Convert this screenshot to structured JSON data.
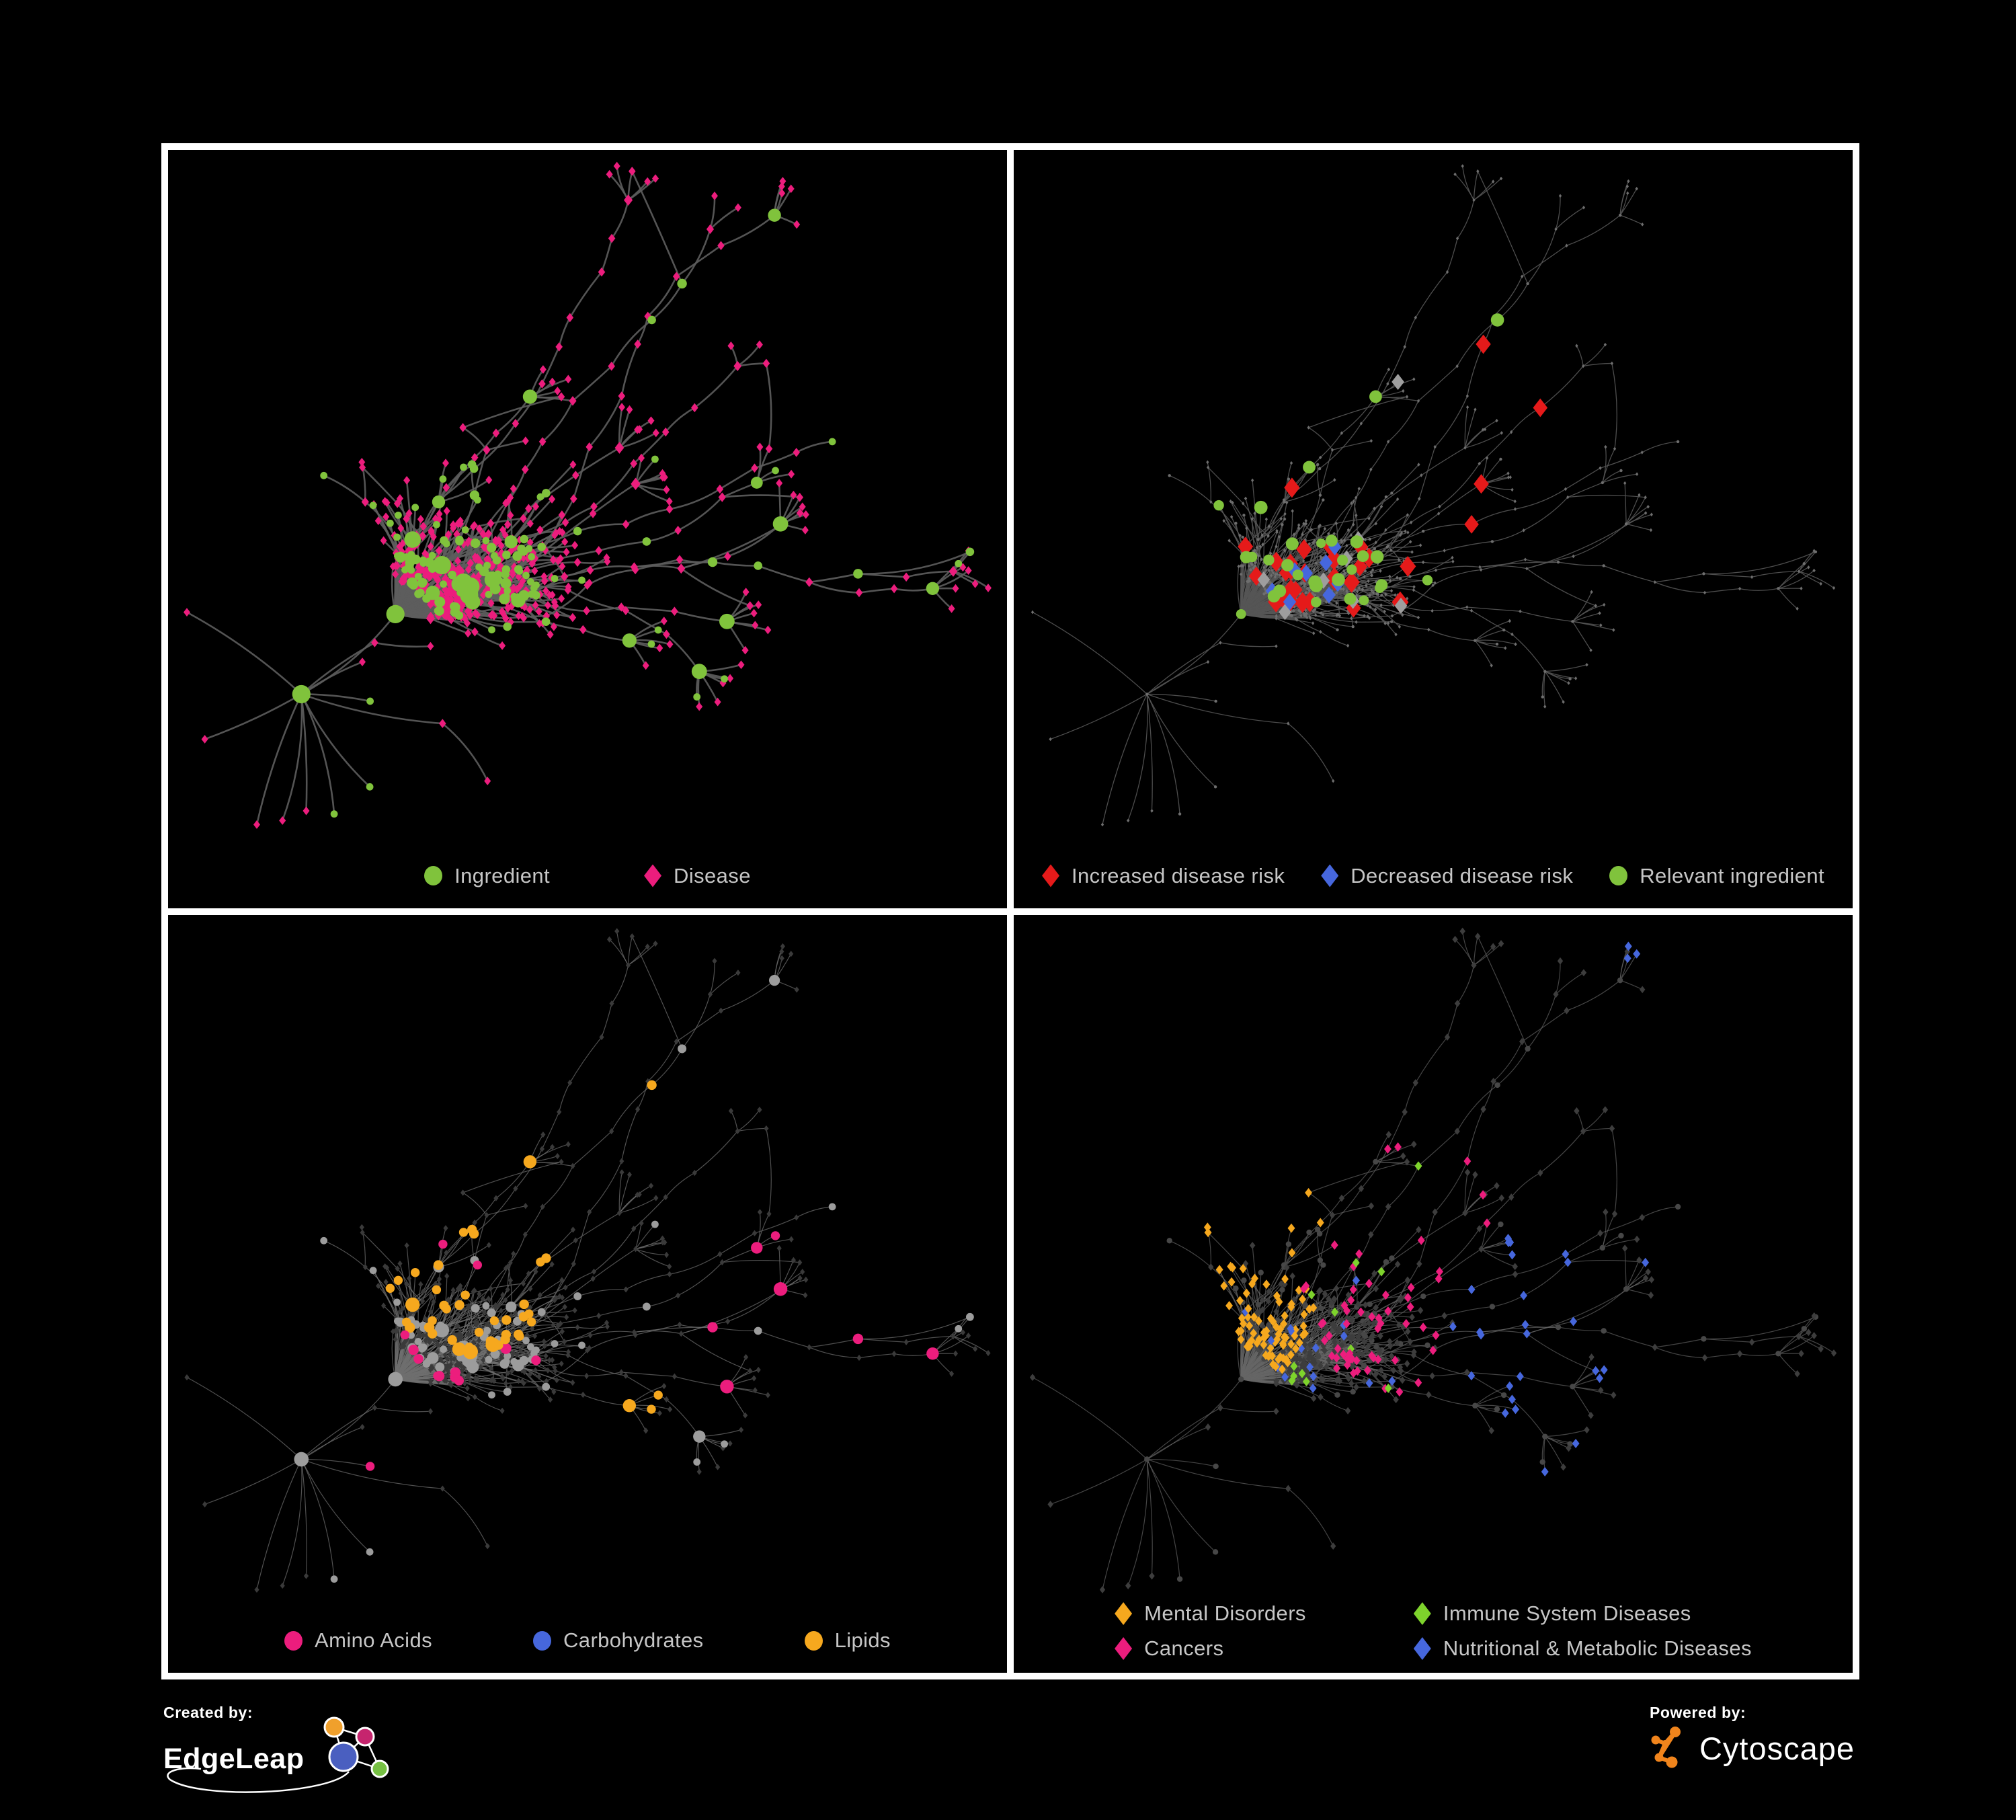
{
  "figure": {
    "background": "#000000",
    "frame_color": "#ffffff",
    "legend_text_color": "#c6c6c6"
  },
  "panels": [
    {
      "name": "ingredient-disease-network",
      "legend": [
        {
          "label": "Ingredient",
          "shape": "circle",
          "color": "#80c33c"
        },
        {
          "label": "Disease",
          "shape": "diamond",
          "color": "#ec1d7d"
        }
      ],
      "render": {
        "mode": "types",
        "edge_color": "#5d5d5d",
        "edge_width": 2.6,
        "edge_opacity": 0.9,
        "ingredient_color": "#80c33c",
        "disease_color": "#ec1d7d"
      }
    },
    {
      "name": "disease-risk-network",
      "legend": [
        {
          "label": "Increased disease risk",
          "shape": "diamond",
          "color": "#e51a1a"
        },
        {
          "label": "Decreased disease risk",
          "shape": "diamond",
          "color": "#4667dd"
        },
        {
          "label": "Relevant ingredient",
          "shape": "circle",
          "color": "#80c33c"
        }
      ],
      "render": {
        "mode": "risk",
        "edge_color": "#555555",
        "edge_width": 1.3,
        "edge_opacity": 0.9,
        "base_node_color": "#6e6e6e",
        "neutral_diamond_color": "#9e9e9e",
        "counts": {
          "increased": 32,
          "neutral": 8,
          "decreased": 10,
          "relevant": 30
        }
      }
    },
    {
      "name": "ingredient-class-network",
      "legend": [
        {
          "label": "Amino Acids",
          "shape": "circle",
          "color": "#ec1d7d"
        },
        {
          "label": "Carbohydrates",
          "shape": "circle",
          "color": "#4667dd"
        },
        {
          "label": "Lipids",
          "shape": "circle",
          "color": "#f6a81e"
        }
      ],
      "render": {
        "mode": "compounds",
        "edge_color": "#6f6f6f",
        "edge_width": 1.2,
        "edge_opacity": 0.72,
        "ingredient_color": "#9c9c9c",
        "disease_color": "#3a3a3a",
        "counts": {
          "amino_acids": 20,
          "carbohydrates": 15,
          "lipids": 72
        }
      }
    },
    {
      "name": "disease-category-network",
      "legend": [
        {
          "label": "Mental Disorders",
          "shape": "diamond",
          "color": "#f6a81e"
        },
        {
          "label": "Immune System Diseases",
          "shape": "diamond",
          "color": "#7ed32c"
        },
        {
          "label": "Cancers",
          "shape": "diamond",
          "color": "#ec1d7d"
        },
        {
          "label": "Nutritional & Metabolic Diseases",
          "shape": "diamond",
          "color": "#4667dd"
        }
      ],
      "render": {
        "mode": "categories",
        "edge_color": "#666666",
        "edge_width": 1.2,
        "edge_opacity": 0.68,
        "ingredient_color": "#474747",
        "disease_color": "#3d3d3d",
        "counts": {
          "mental": 90,
          "cancers": 58,
          "nutritional": 95,
          "immune": 12
        }
      }
    }
  ],
  "footer": {
    "created_by_label": "Created by:",
    "created_by_name": "EdgeLeap",
    "powered_by_label": "Powered by:",
    "powered_by_name": "Cytoscape",
    "edgeleap_colors": {
      "orange": "#f0a02c",
      "magenta": "#c6256e",
      "blue": "#4a5fc0",
      "green": "#76c043"
    },
    "cytoscape_orange": "#f0841c"
  },
  "network": {
    "seed": 20177,
    "node_count": 690,
    "extra_edge_count": 34,
    "legend_space": 110
  }
}
